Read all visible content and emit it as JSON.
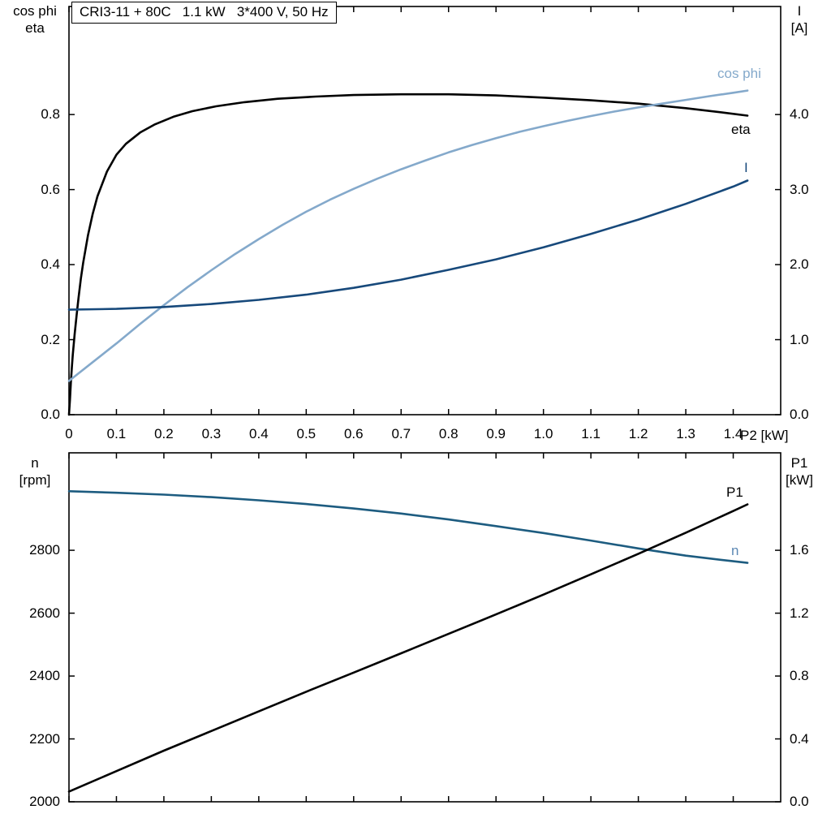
{
  "title": "CRI3-11 + 80C   1.1 kW   3*400 V, 50 Hz",
  "axis_titles": {
    "top_left": [
      "cos phi",
      "eta"
    ],
    "top_right": [
      "I",
      "[A]"
    ],
    "x": "P2 [kW]",
    "bottom_left": [
      "n",
      "[rpm]"
    ],
    "bottom_right": [
      "P1",
      "[kW]"
    ]
  },
  "curve_labels": {
    "cos_phi": "cos phi",
    "eta": "eta",
    "current": "I",
    "p1": "P1",
    "n": "n"
  },
  "colors": {
    "black": "#000000",
    "frame": "#000000",
    "light_blue": "#84a9cb",
    "dark_blue": "#17497b",
    "n_curve": "#1d5c80",
    "n_label": "#5c88b4"
  },
  "chart_data": [
    {
      "id": "top",
      "type": "line",
      "title": "CRI3-11 + 80C   1.1 kW   3*400 V, 50 Hz",
      "grid": false,
      "legend_position": "curve-labels",
      "x_axis": {
        "label": "P2 [kW]",
        "min": 0,
        "max": 1.5,
        "ticks": [
          0,
          0.1,
          0.2,
          0.3,
          0.4,
          0.5,
          0.6,
          0.7,
          0.8,
          0.9,
          1.0,
          1.1,
          1.2,
          1.3,
          1.4
        ],
        "tick_labels": [
          "0",
          "0.1",
          "0.2",
          "0.3",
          "0.4",
          "0.5",
          "0.6",
          "0.7",
          "0.8",
          "0.9",
          "1.0",
          "1.1",
          "1.2",
          "1.3",
          "1.4"
        ],
        "show_tick_labels": true
      },
      "y_left": {
        "label": "cos phi / eta",
        "min": 0,
        "max": 1.088,
        "ticks": [
          0,
          0.2,
          0.4,
          0.6,
          0.8
        ],
        "tick_labels": [
          "0.0",
          "0.2",
          "0.4",
          "0.6",
          "0.8"
        ]
      },
      "y_right": {
        "label": "I [A]",
        "min": 0,
        "max": 5.44,
        "ticks": [
          0,
          1,
          2,
          3,
          4
        ],
        "tick_labels": [
          "0.0",
          "1.0",
          "2.0",
          "3.0",
          "4.0"
        ]
      },
      "series": [
        {
          "id": "eta",
          "name": "eta",
          "axis": "left",
          "color": "#000000",
          "points": [
            [
              0,
              0
            ],
            [
              0.002,
              0.04
            ],
            [
              0.004,
              0.085
            ],
            [
              0.006,
              0.125
            ],
            [
              0.008,
              0.16
            ],
            [
              0.012,
              0.215
            ],
            [
              0.016,
              0.265
            ],
            [
              0.02,
              0.31
            ],
            [
              0.025,
              0.362
            ],
            [
              0.03,
              0.405
            ],
            [
              0.04,
              0.478
            ],
            [
              0.05,
              0.535
            ],
            [
              0.06,
              0.582
            ],
            [
              0.08,
              0.648
            ],
            [
              0.1,
              0.693
            ],
            [
              0.12,
              0.722
            ],
            [
              0.15,
              0.752
            ],
            [
              0.18,
              0.773
            ],
            [
              0.22,
              0.794
            ],
            [
              0.26,
              0.809
            ],
            [
              0.31,
              0.822
            ],
            [
              0.37,
              0.833
            ],
            [
              0.44,
              0.842
            ],
            [
              0.52,
              0.848
            ],
            [
              0.6,
              0.852
            ],
            [
              0.7,
              0.854
            ],
            [
              0.8,
              0.854
            ],
            [
              0.9,
              0.851
            ],
            [
              1.0,
              0.845
            ],
            [
              1.1,
              0.838
            ],
            [
              1.2,
              0.829
            ],
            [
              1.3,
              0.817
            ],
            [
              1.38,
              0.805
            ],
            [
              1.43,
              0.797
            ]
          ]
        },
        {
          "id": "cos-phi",
          "name": "cos phi",
          "axis": "left",
          "color": "#84a9cb",
          "points": [
            [
              0,
              0.09
            ],
            [
              0.05,
              0.14
            ],
            [
              0.1,
              0.19
            ],
            [
              0.15,
              0.242
            ],
            [
              0.2,
              0.292
            ],
            [
              0.25,
              0.34
            ],
            [
              0.3,
              0.385
            ],
            [
              0.35,
              0.428
            ],
            [
              0.4,
              0.468
            ],
            [
              0.45,
              0.506
            ],
            [
              0.5,
              0.541
            ],
            [
              0.55,
              0.573
            ],
            [
              0.6,
              0.602
            ],
            [
              0.65,
              0.629
            ],
            [
              0.7,
              0.654
            ],
            [
              0.75,
              0.677
            ],
            [
              0.8,
              0.699
            ],
            [
              0.85,
              0.719
            ],
            [
              0.9,
              0.737
            ],
            [
              0.95,
              0.754
            ],
            [
              1.0,
              0.769
            ],
            [
              1.05,
              0.783
            ],
            [
              1.1,
              0.796
            ],
            [
              1.15,
              0.808
            ],
            [
              1.2,
              0.819
            ],
            [
              1.25,
              0.829
            ],
            [
              1.3,
              0.839
            ],
            [
              1.35,
              0.849
            ],
            [
              1.4,
              0.858
            ],
            [
              1.43,
              0.864
            ]
          ]
        },
        {
          "id": "current",
          "name": "I",
          "axis": "right",
          "color": "#17497b",
          "points": [
            [
              0,
              1.4
            ],
            [
              0.1,
              1.41
            ],
            [
              0.2,
              1.435
            ],
            [
              0.3,
              1.475
            ],
            [
              0.4,
              1.53
            ],
            [
              0.5,
              1.6
            ],
            [
              0.6,
              1.69
            ],
            [
              0.7,
              1.8
            ],
            [
              0.8,
              1.93
            ],
            [
              0.9,
              2.07
            ],
            [
              1.0,
              2.23
            ],
            [
              1.1,
              2.41
            ],
            [
              1.2,
              2.6
            ],
            [
              1.3,
              2.81
            ],
            [
              1.4,
              3.04
            ],
            [
              1.43,
              3.12
            ]
          ]
        }
      ]
    },
    {
      "id": "bottom",
      "type": "line",
      "title": "",
      "grid": false,
      "legend_position": "curve-labels",
      "x_axis": {
        "label": "",
        "min": 0,
        "max": 1.5,
        "ticks": [
          0,
          0.1,
          0.2,
          0.3,
          0.4,
          0.5,
          0.6,
          0.7,
          0.8,
          0.9,
          1.0,
          1.1,
          1.2,
          1.3,
          1.4
        ],
        "tick_labels": [],
        "show_tick_labels": false
      },
      "y_left": {
        "label": "n [rpm]",
        "min": 2000,
        "max": 3110,
        "ticks": [
          2000,
          2200,
          2400,
          2600,
          2800
        ],
        "tick_labels": [
          "2000",
          "2200",
          "2400",
          "2600",
          "2800"
        ]
      },
      "y_right": {
        "label": "P1 [kW]",
        "min": 0,
        "max": 2.22,
        "ticks": [
          0,
          0.4,
          0.8,
          1.2,
          1.6
        ],
        "tick_labels": [
          "0.0",
          "0.4",
          "0.8",
          "1.2",
          "1.6"
        ]
      },
      "series": [
        {
          "id": "n",
          "name": "n",
          "axis": "left",
          "color": "#1d5c80",
          "points": [
            [
              0,
              2988
            ],
            [
              0.1,
              2983
            ],
            [
              0.2,
              2977
            ],
            [
              0.3,
              2969
            ],
            [
              0.4,
              2959
            ],
            [
              0.5,
              2947
            ],
            [
              0.6,
              2933
            ],
            [
              0.7,
              2917
            ],
            [
              0.8,
              2898
            ],
            [
              0.9,
              2877
            ],
            [
              1.0,
              2855
            ],
            [
              1.1,
              2831
            ],
            [
              1.2,
              2806
            ],
            [
              1.3,
              2783
            ],
            [
              1.4,
              2765
            ],
            [
              1.43,
              2760
            ]
          ]
        },
        {
          "id": "p1",
          "name": "P1",
          "axis": "right",
          "color": "#000000",
          "points": [
            [
              0,
              0.065
            ],
            [
              0.1,
              0.195
            ],
            [
              0.2,
              0.325
            ],
            [
              0.3,
              0.45
            ],
            [
              0.4,
              0.575
            ],
            [
              0.5,
              0.7
            ],
            [
              0.6,
              0.822
            ],
            [
              0.7,
              0.945
            ],
            [
              0.8,
              1.068
            ],
            [
              0.9,
              1.192
            ],
            [
              1.0,
              1.318
            ],
            [
              1.1,
              1.447
            ],
            [
              1.2,
              1.578
            ],
            [
              1.3,
              1.712
            ],
            [
              1.4,
              1.85
            ],
            [
              1.43,
              1.892
            ]
          ]
        }
      ]
    }
  ]
}
